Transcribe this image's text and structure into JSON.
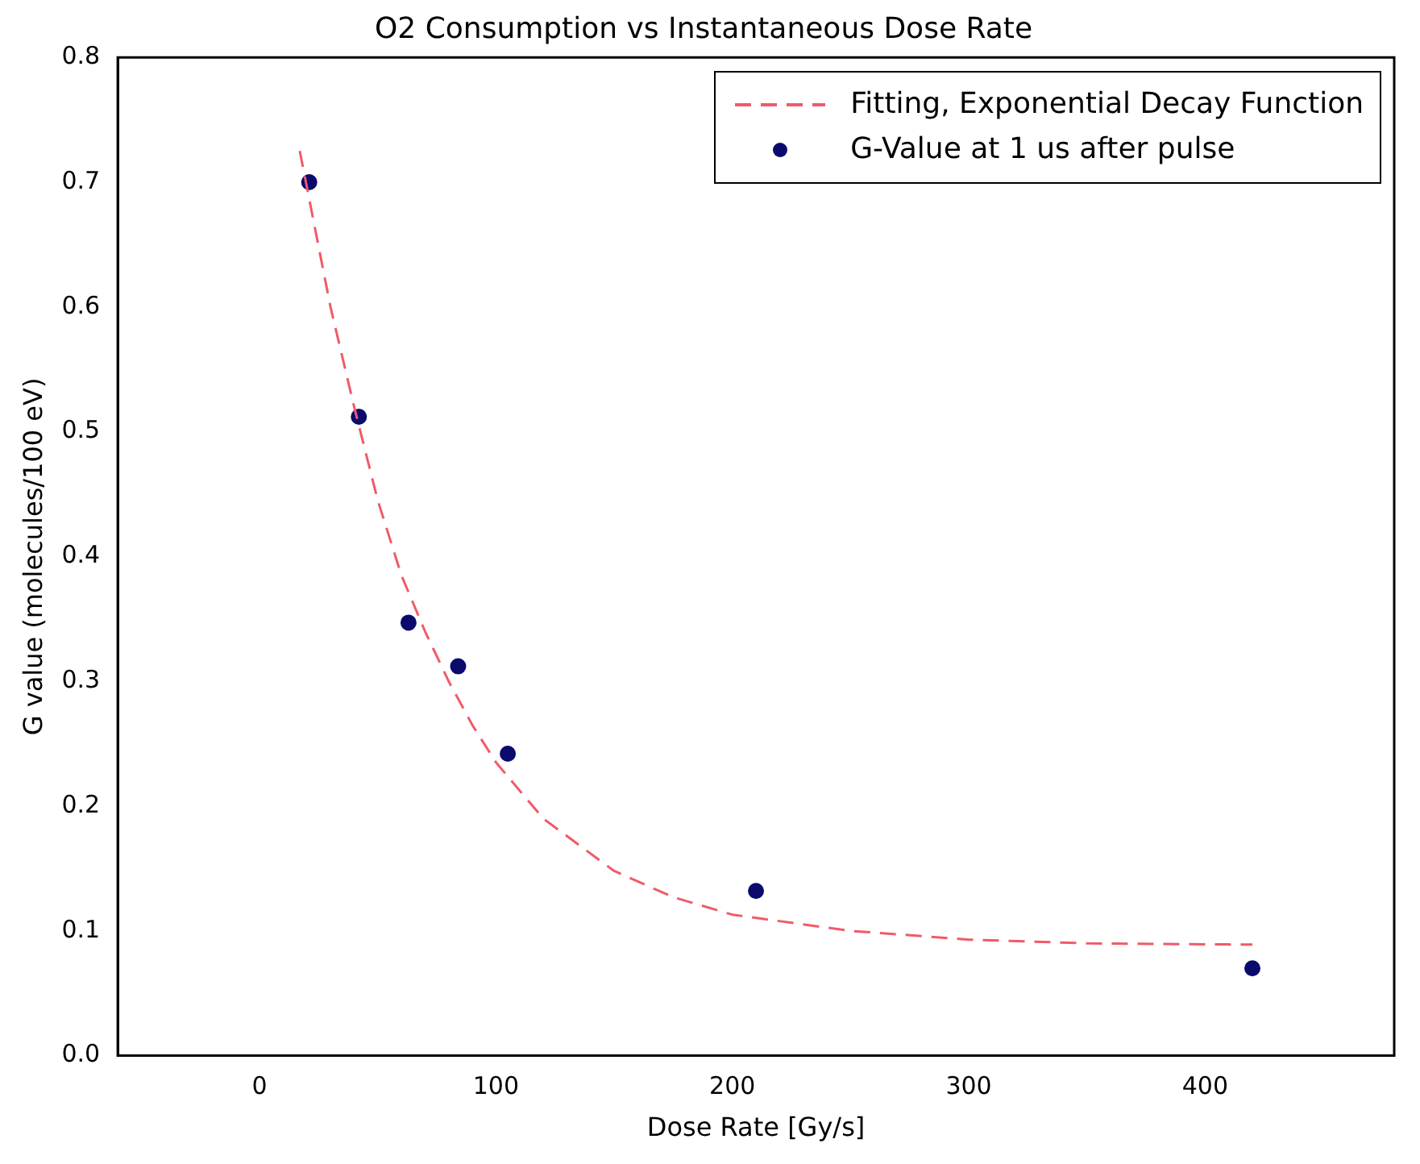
{
  "chart_data": {
    "type": "scatter",
    "title": "O2 Consumption vs Instantaneous Dose Rate",
    "xlabel": "Dose Rate [Gy/s]",
    "ylabel": "G value (molecules/100 eV)",
    "xlim": [
      -60,
      480
    ],
    "xticks": [
      0,
      100,
      200,
      300,
      400
    ],
    "ylim": [
      0,
      0.8
    ],
    "yticks": [
      {
        "value": 0,
        "label": "0.0"
      },
      0.1,
      0.2,
      0.3,
      0.4,
      0.5,
      0.6,
      0.7,
      0.8
    ],
    "grid": false,
    "legend": "top right",
    "series": [
      {
        "name": "Fitting, Exponential Decay Function",
        "type": "line",
        "color": "#f05a6a",
        "line_style": "dashed",
        "marker": "none",
        "x": [
          17,
          30,
          40,
          50,
          60,
          70,
          80,
          90,
          100,
          120,
          150,
          175,
          200,
          250,
          300,
          350,
          420
        ],
        "values": [
          0.725,
          0.6,
          0.52,
          0.445,
          0.385,
          0.34,
          0.3,
          0.265,
          0.235,
          0.19,
          0.148,
          0.127,
          0.113,
          0.1,
          0.093,
          0.09,
          0.089
        ]
      },
      {
        "name": "G-Value at 1 us after pulse",
        "type": "scatter",
        "color": "#0b0b6e",
        "marker": "circle",
        "x": [
          21,
          42,
          63,
          84,
          105,
          210,
          420
        ],
        "values": [
          0.7,
          0.512,
          0.347,
          0.312,
          0.242,
          0.132,
          0.07
        ]
      }
    ]
  }
}
